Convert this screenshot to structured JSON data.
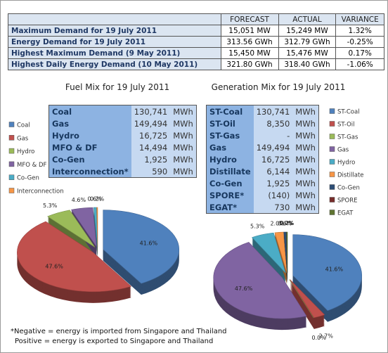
{
  "summary_table": {
    "header": [
      "FORECAST",
      "ACTUAL",
      "VARIANCE"
    ],
    "rows": [
      [
        "Maximum Demand for 19 July 2011",
        "15,051 MW",
        "15,249 MW",
        "1.32%"
      ],
      [
        "Energy Demand for 19 July 2011",
        "313.56 GWh",
        "312.79 GWh",
        "-0.25%"
      ],
      [
        "Highest Maximum Demand (9 May 2011)",
        "15,450 MW",
        "15,476 MW",
        "0.17%"
      ],
      [
        "Highest Daily Energy Demand (10 May 2011)",
        "321.80 GWh",
        "318.40 GWh",
        "-1.06%"
      ]
    ]
  },
  "fuel_table": {
    "rows": [
      [
        "Coal",
        "130,741",
        "MWh"
      ],
      [
        "Gas",
        "149,494",
        "MWh"
      ],
      [
        "Hydro",
        "16,725",
        "MWh"
      ],
      [
        "MFO & DF",
        "14,494",
        "MWh"
      ],
      [
        "Co-Gen",
        "1,925",
        "MWh"
      ],
      [
        "Interconnection*",
        "590",
        "MWh"
      ]
    ]
  },
  "generation_table": {
    "rows": [
      [
        "ST-Coal",
        "130,741",
        "MWh"
      ],
      [
        "ST-Oil",
        "8,350",
        "MWh"
      ],
      [
        "ST-Gas",
        "-",
        "MWh"
      ],
      [
        "Gas",
        "149,494",
        "MWh"
      ],
      [
        "Hydro",
        "16,725",
        "MWh"
      ],
      [
        "Distillate",
        "6,144",
        "MWh"
      ],
      [
        "Co-Gen",
        "1,925",
        "MWh"
      ],
      [
        "SPORE*",
        "(140)",
        "MWh"
      ],
      [
        "EGAT*",
        "730",
        "MWh"
      ]
    ]
  },
  "chart_data": [
    {
      "type": "pie",
      "title": "Fuel Mix for 19 July 2011",
      "categories": [
        "Coal",
        "Gas",
        "Hydro",
        "MFO & DF",
        "Co-Gen",
        "Interconnection"
      ],
      "values": [
        41.6,
        47.6,
        5.3,
        4.6,
        0.6,
        0.2
      ],
      "value_labels": [
        "41.6%",
        "47.6%",
        "5.3%",
        "4.6%",
        "0.6%",
        "0.2%"
      ],
      "colors": [
        "#4f81bd",
        "#c0504d",
        "#9bbb59",
        "#8064a2",
        "#4bacc6",
        "#f79646"
      ]
    },
    {
      "type": "pie",
      "title": "Generation Mix for 19 July 2011",
      "categories": [
        "ST-Coal",
        "ST-Oil",
        "ST-Gas",
        "Gas",
        "Hydro",
        "Distillate",
        "Co-Gen",
        "SPORE",
        "EGAT"
      ],
      "values": [
        41.6,
        2.7,
        0.0,
        47.6,
        5.3,
        2.0,
        0.6,
        0.0,
        0.2
      ],
      "value_labels": [
        "41.6%",
        "2.7%",
        "0.0%",
        "47.6%",
        "5.3%",
        "2.0%",
        "0.6%",
        "0.0%",
        "0.2%"
      ],
      "colors": [
        "#4f81bd",
        "#c0504d",
        "#9bbb59",
        "#8064a2",
        "#4bacc6",
        "#f79646",
        "#2c4d75",
        "#772c2a",
        "#5f7530"
      ]
    }
  ],
  "notes": [
    "*Negative = energy is imported from Singapore and Thailand",
    "Positive = energy is exported to Singapore and Thailand"
  ]
}
